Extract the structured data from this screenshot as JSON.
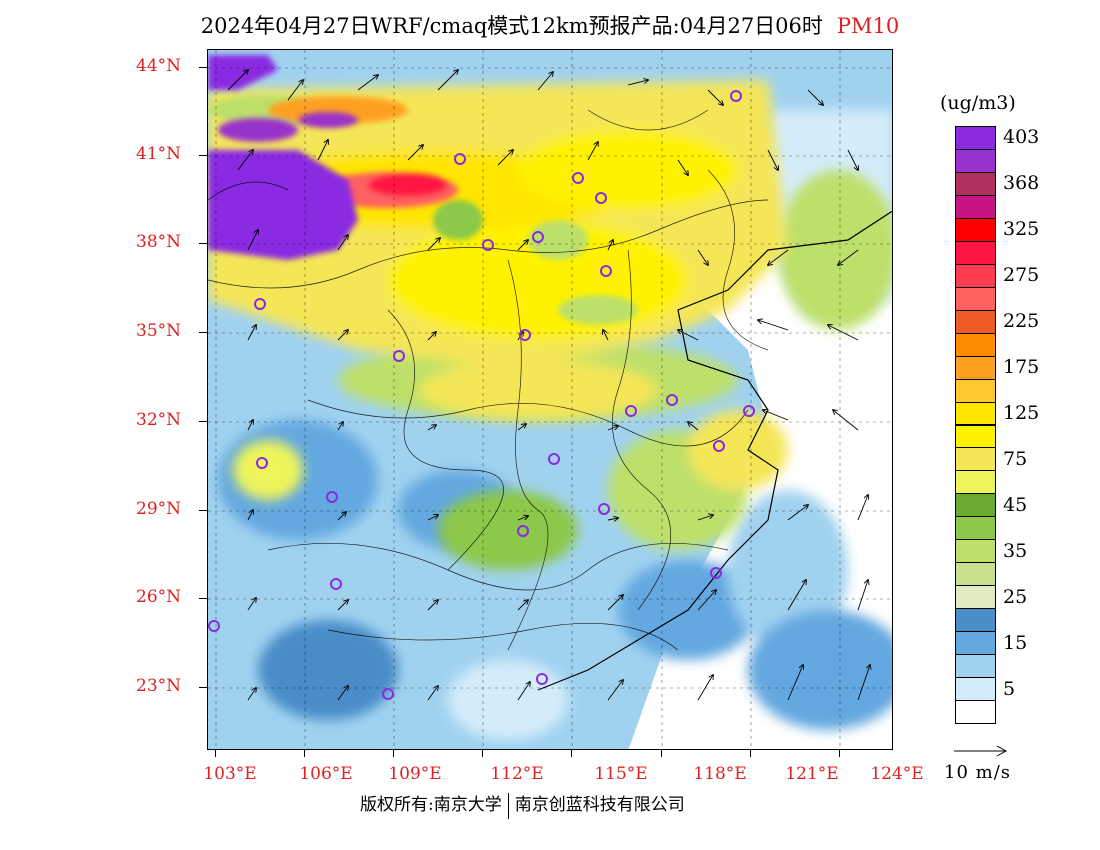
{
  "title": {
    "main": "2024年04月27日WRF/cmaq模式12km预报产品:04月27日06时",
    "pollutant": "PM10"
  },
  "axes": {
    "lat_labels": [
      "44°N",
      "41°N",
      "38°N",
      "35°N",
      "32°N",
      "29°N",
      "26°N",
      "23°N"
    ],
    "lon_labels": [
      "103°E",
      "106°E",
      "109°E",
      "112°E",
      "115°E",
      "118°E",
      "121°E",
      "124°E"
    ]
  },
  "legend": {
    "unit": "(ug/m3)",
    "levels": [
      {
        "label": "403",
        "color": "#8a2be2"
      },
      {
        "label": "",
        "color": "#9932cc"
      },
      {
        "label": "368",
        "color": "#b03060"
      },
      {
        "label": "",
        "color": "#c71585"
      },
      {
        "label": "325",
        "color": "#ff0000"
      },
      {
        "label": "",
        "color": "#ff1744"
      },
      {
        "label": "275",
        "color": "#ff3c50"
      },
      {
        "label": "",
        "color": "#ff6060"
      },
      {
        "label": "225",
        "color": "#f05a28"
      },
      {
        "label": "",
        "color": "#ff8c00"
      },
      {
        "label": "175",
        "color": "#ffa020"
      },
      {
        "label": "",
        "color": "#ffc830"
      },
      {
        "label": "125",
        "color": "#ffe600"
      },
      {
        "label": "",
        "color": "#fff200"
      },
      {
        "label": "75",
        "color": "#f5e658"
      },
      {
        "label": "",
        "color": "#eef55a"
      },
      {
        "label": "45",
        "color": "#6aaa32"
      },
      {
        "label": "",
        "color": "#8cc84a"
      },
      {
        "label": "35",
        "color": "#bde06a"
      },
      {
        "label": "",
        "color": "#c8e08c"
      },
      {
        "label": "25",
        "color": "#e0ecc0"
      },
      {
        "label": "",
        "color": "#4a8cc8"
      },
      {
        "label": "15",
        "color": "#64a8e0"
      },
      {
        "label": "",
        "color": "#a0d2f0"
      },
      {
        "label": "5",
        "color": "#d4ecfa"
      },
      {
        "label": "",
        "color": "#ffffff"
      }
    ]
  },
  "wind_scale": "10 m/s",
  "copyright": {
    "left": "版权所有:南京大学",
    "right": "南京创蓝科技有限公司"
  },
  "colors": {
    "background": "#ffffff",
    "axis_label": "#e02020",
    "city_marker": "#8a2be2"
  }
}
